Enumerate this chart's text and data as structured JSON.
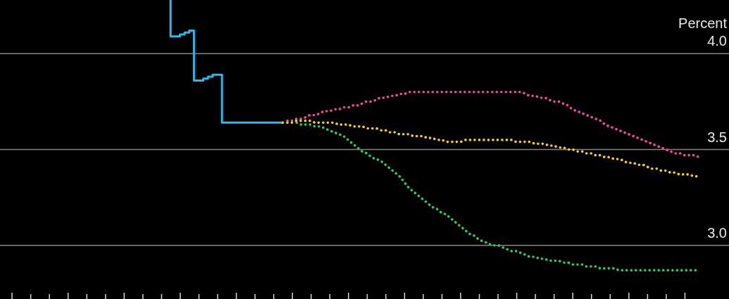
{
  "chart_data": {
    "type": "line",
    "categories": [
      null,
      null,
      null,
      null,
      null,
      null,
      null,
      null,
      null,
      null,
      null,
      null,
      null,
      null,
      null,
      null,
      null,
      null,
      null,
      null,
      null,
      null,
      null,
      null,
      null,
      null,
      null,
      null,
      null,
      null,
      null,
      null,
      null,
      null,
      null,
      null,
      null,
      null,
      null,
      null,
      null,
      null,
      null,
      null,
      null,
      null,
      null,
      null,
      null,
      null,
      null,
      null,
      null,
      null,
      null,
      null,
      null,
      null,
      null,
      null,
      null,
      null,
      null,
      null,
      null,
      null,
      null,
      null,
      null,
      null,
      null,
      null,
      null,
      null,
      null,
      null,
      null,
      null,
      null,
      null,
      null,
      null,
      null,
      null,
      null,
      null,
      null,
      null,
      null,
      null,
      null,
      null,
      null,
      null,
      null,
      null,
      null,
      null,
      null,
      null,
      null,
      null,
      null,
      null,
      null,
      null,
      null,
      null,
      null,
      null,
      null,
      null,
      null,
      null,
      null,
      null,
      null,
      null,
      null,
      null,
      null,
      null,
      null,
      null,
      null,
      null,
      null,
      null,
      null,
      null,
      null,
      null,
      null,
      null,
      null,
      null,
      null,
      null,
      null,
      null,
      null,
      null,
      null,
      null,
      null,
      null,
      null,
      null,
      null,
      null,
      null,
      null,
      null,
      null,
      null,
      null
    ],
    "ylabel": "Percent",
    "ylim": [
      2.72,
      4.28
    ],
    "yticks": [
      {
        "value": 3,
        "label": "3.0"
      },
      3.5,
      {
        "value": 4,
        "label": "4.0"
      }
    ],
    "grid": "y",
    "series": [
      {
        "type": "step",
        "color": "#33b5e8",
        "values": [
          null,
          null,
          null,
          null,
          null,
          null,
          null,
          null,
          null,
          null,
          null,
          null,
          null,
          null,
          null,
          null,
          null,
          null,
          null,
          null,
          null,
          null,
          null,
          null,
          null,
          null,
          null,
          null,
          null,
          null,
          null,
          null,
          null,
          null,
          null,
          null,
          4.28,
          4.09,
          4.09,
          4.1,
          4.11,
          4.12,
          3.86,
          3.86,
          3.87,
          3.88,
          3.89,
          3.89,
          3.64,
          3.64,
          3.64,
          3.64,
          3.64,
          3.64,
          3.64,
          3.64,
          3.64,
          3.64,
          3.64,
          3.64,
          3.64,
          null,
          null,
          null,
          null,
          null,
          null,
          null,
          null,
          null,
          null,
          null,
          null,
          null,
          null,
          null,
          null,
          null,
          null,
          null,
          null,
          null,
          null,
          null,
          null,
          null,
          null,
          null,
          null,
          null,
          null,
          null,
          null,
          null,
          null,
          null,
          null,
          null,
          null,
          null,
          null,
          null,
          null,
          null,
          null,
          null,
          null,
          null,
          null,
          null,
          null,
          null,
          null,
          null,
          null,
          null,
          null,
          null,
          null,
          null,
          null,
          null,
          null,
          null,
          null,
          null,
          null,
          null,
          null,
          null,
          null,
          null,
          null,
          null,
          null,
          null,
          null,
          null,
          null,
          null,
          null,
          null,
          null,
          null,
          null,
          null,
          null,
          null,
          null,
          null,
          null,
          null,
          null,
          null,
          null,
          null
        ]
      },
      {
        "type": "line",
        "line_style": "dotted",
        "color": "#ea4c9c",
        "values": [
          null,
          null,
          null,
          null,
          null,
          null,
          null,
          null,
          null,
          null,
          null,
          null,
          null,
          null,
          null,
          null,
          null,
          null,
          null,
          null,
          null,
          null,
          null,
          null,
          null,
          null,
          null,
          null,
          null,
          null,
          null,
          null,
          null,
          null,
          null,
          null,
          null,
          null,
          null,
          null,
          null,
          null,
          null,
          null,
          null,
          null,
          null,
          null,
          null,
          null,
          null,
          null,
          null,
          null,
          null,
          null,
          null,
          null,
          null,
          null,
          null,
          3.65,
          3.65,
          3.66,
          3.66,
          3.67,
          3.68,
          3.68,
          3.69,
          3.7,
          3.7,
          3.71,
          3.71,
          3.72,
          3.72,
          3.73,
          3.73,
          3.74,
          3.75,
          3.75,
          3.76,
          3.77,
          3.77,
          3.78,
          3.78,
          3.79,
          3.79,
          3.8,
          3.8,
          3.8,
          3.8,
          3.8,
          3.8,
          3.8,
          3.8,
          3.8,
          3.8,
          3.8,
          3.8,
          3.8,
          3.8,
          3.8,
          3.8,
          3.8,
          3.8,
          3.8,
          3.8,
          3.8,
          3.8,
          3.8,
          3.8,
          3.8,
          3.79,
          3.78,
          3.78,
          3.77,
          3.77,
          3.76,
          3.75,
          3.75,
          3.74,
          3.73,
          3.71,
          3.7,
          3.69,
          3.68,
          3.67,
          3.66,
          3.65,
          3.63,
          3.62,
          3.61,
          3.6,
          3.59,
          3.58,
          3.57,
          3.56,
          3.55,
          3.54,
          3.53,
          3.52,
          3.51,
          3.5,
          3.49,
          3.48,
          3.48,
          3.47,
          3.47,
          3.47,
          3.46,
          null,
          null,
          null,
          null,
          null,
          null
        ]
      },
      {
        "type": "line",
        "line_style": "dotted",
        "color": "#2ec862",
        "values": [
          null,
          null,
          null,
          null,
          null,
          null,
          null,
          null,
          null,
          null,
          null,
          null,
          null,
          null,
          null,
          null,
          null,
          null,
          null,
          null,
          null,
          null,
          null,
          null,
          null,
          null,
          null,
          null,
          null,
          null,
          null,
          null,
          null,
          null,
          null,
          null,
          null,
          null,
          null,
          null,
          null,
          null,
          null,
          null,
          null,
          null,
          null,
          null,
          null,
          null,
          null,
          null,
          null,
          null,
          null,
          null,
          null,
          null,
          null,
          null,
          null,
          null,
          null,
          3.64,
          3.63,
          3.63,
          3.63,
          3.62,
          3.62,
          3.61,
          3.6,
          3.59,
          3.58,
          3.57,
          3.55,
          3.53,
          3.51,
          3.49,
          3.48,
          3.46,
          3.45,
          3.44,
          3.42,
          3.4,
          3.38,
          3.36,
          3.33,
          3.3,
          3.28,
          3.26,
          3.24,
          3.22,
          3.2,
          3.19,
          3.17,
          3.16,
          3.14,
          3.12,
          3.1,
          3.08,
          3.06,
          3.05,
          3.03,
          3.02,
          3.01,
          3.0,
          3.0,
          2.99,
          2.98,
          2.97,
          2.97,
          2.96,
          2.95,
          2.94,
          2.94,
          2.93,
          2.93,
          2.92,
          2.92,
          2.92,
          2.91,
          2.91,
          2.9,
          2.9,
          2.9,
          2.89,
          2.89,
          2.89,
          2.88,
          2.88,
          2.88,
          2.88,
          2.87,
          2.87,
          2.87,
          2.87,
          2.87,
          2.87,
          2.87,
          2.87,
          2.87,
          2.87,
          2.87,
          2.87,
          2.87,
          2.87,
          2.87,
          2.87,
          2.87,
          2.87,
          null,
          null,
          null,
          null,
          null,
          null
        ]
      },
      {
        "type": "line",
        "line_style": "dotted",
        "color": "#f4ca30",
        "values": [
          null,
          null,
          null,
          null,
          null,
          null,
          null,
          null,
          null,
          null,
          null,
          null,
          null,
          null,
          null,
          null,
          null,
          null,
          null,
          null,
          null,
          null,
          null,
          null,
          null,
          null,
          null,
          null,
          null,
          null,
          null,
          null,
          null,
          null,
          null,
          null,
          null,
          null,
          null,
          null,
          null,
          null,
          null,
          null,
          null,
          null,
          null,
          null,
          null,
          null,
          null,
          null,
          null,
          null,
          null,
          null,
          null,
          null,
          null,
          null,
          3.64,
          3.64,
          3.64,
          3.65,
          3.65,
          3.65,
          3.65,
          3.64,
          3.64,
          3.64,
          3.64,
          3.64,
          3.63,
          3.63,
          3.63,
          3.62,
          3.62,
          3.62,
          3.61,
          3.61,
          3.61,
          3.6,
          3.6,
          3.59,
          3.59,
          3.58,
          3.58,
          3.58,
          3.57,
          3.57,
          3.57,
          3.56,
          3.56,
          3.55,
          3.55,
          3.54,
          3.54,
          3.54,
          3.54,
          3.55,
          3.55,
          3.55,
          3.55,
          3.55,
          3.55,
          3.55,
          3.55,
          3.55,
          3.55,
          3.55,
          3.54,
          3.54,
          3.54,
          3.54,
          3.53,
          3.53,
          3.53,
          3.52,
          3.52,
          3.51,
          3.51,
          3.5,
          3.5,
          3.49,
          3.49,
          3.48,
          3.48,
          3.47,
          3.47,
          3.46,
          3.46,
          3.45,
          3.45,
          3.44,
          3.43,
          3.43,
          3.42,
          3.42,
          3.41,
          3.4,
          3.4,
          3.39,
          3.39,
          3.38,
          3.38,
          3.37,
          3.37,
          3.37,
          3.36,
          3.36,
          null,
          null,
          null,
          null,
          null,
          null
        ]
      }
    ]
  }
}
